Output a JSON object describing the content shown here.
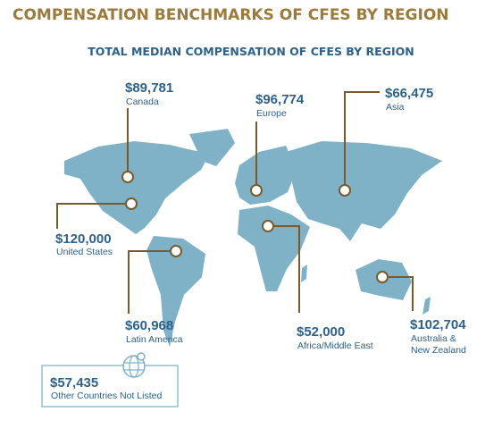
{
  "header": {
    "title": "COMPENSATION BENCHMARKS OF CFES BY REGION",
    "subtitle": "TOTAL MEDIAN COMPENSATION OF CFES BY REGION"
  },
  "regions": [
    {
      "amount": "$89,781",
      "name": "Canada"
    },
    {
      "amount": "$96,774",
      "name": "Europe"
    },
    {
      "amount": "$66,475",
      "name": "Asia"
    },
    {
      "amount": "$120,000",
      "name": "United States"
    },
    {
      "amount": "$60,968",
      "name": "Latin America"
    },
    {
      "amount": "$52,000",
      "name": "Africa/Middle East"
    },
    {
      "amount": "$102,704",
      "name": "Australia &",
      "name2": "New Zealand"
    }
  ],
  "other": {
    "amount": "$57,435",
    "name": "Other Countries Not Listed"
  }
}
